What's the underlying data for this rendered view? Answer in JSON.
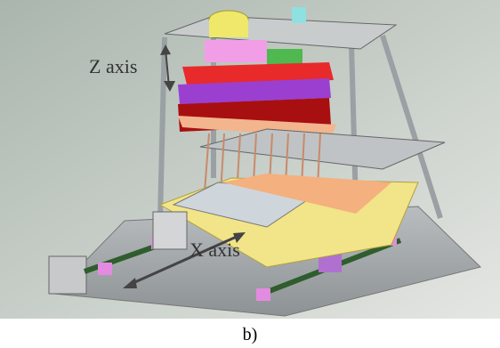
{
  "labels": {
    "z_axis": "Z axis",
    "x_axis": "X axis"
  },
  "caption": "b)"
}
